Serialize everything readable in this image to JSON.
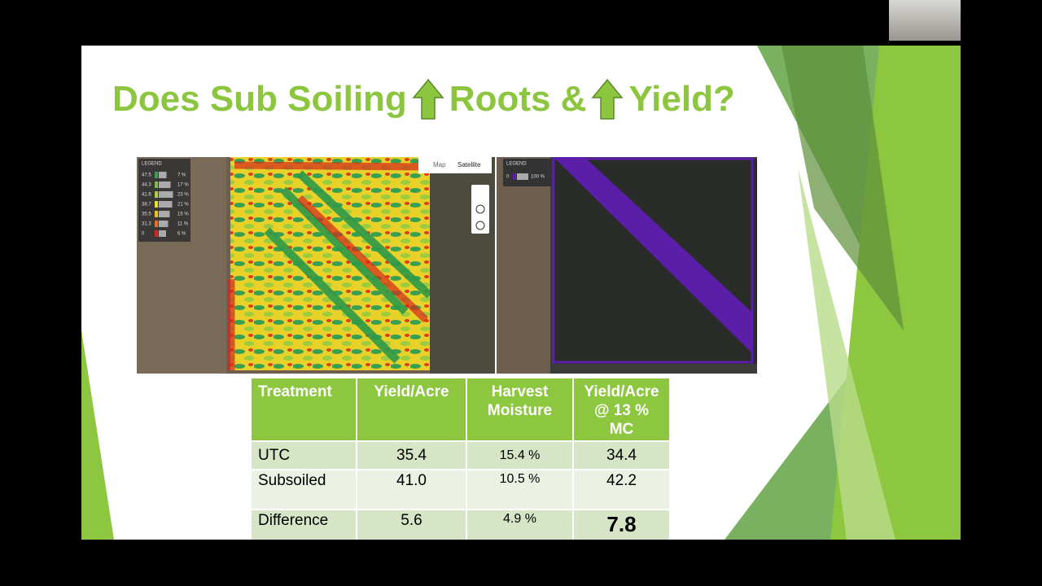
{
  "slide": {
    "title": [
      "Does Sub Soiling",
      "Roots &",
      "Yield?"
    ],
    "yield_map": {
      "legend_title": "LEGEND",
      "map_button": "Map",
      "satellite_button": "Satellite",
      "legend": [
        [
          "47.5",
          "7 %"
        ],
        [
          "44.3",
          "17 %"
        ],
        [
          "41.6",
          "23 %"
        ],
        [
          "38.7",
          "21 %"
        ],
        [
          "35.5",
          "15 %"
        ],
        [
          "31.3",
          "11 %"
        ],
        [
          "0",
          "6 %"
        ]
      ]
    },
    "treatment_map": {
      "legend_title": "LEGEND",
      "legend": [
        [
          "0",
          "100 %"
        ]
      ]
    },
    "table": {
      "header": [
        "Treatment",
        "Yield/Acre",
        "Harvest Moisture",
        "Yield/Acre @ 13 % MC"
      ],
      "rows": [
        [
          "UTC",
          "35.4",
          "15.4 %",
          "34.4"
        ],
        [
          "Subsoiled",
          "41.0",
          "10.5 %",
          "42.2"
        ],
        [
          "Difference",
          "5.6",
          "4.9 %",
          "7.8"
        ]
      ]
    }
  }
}
